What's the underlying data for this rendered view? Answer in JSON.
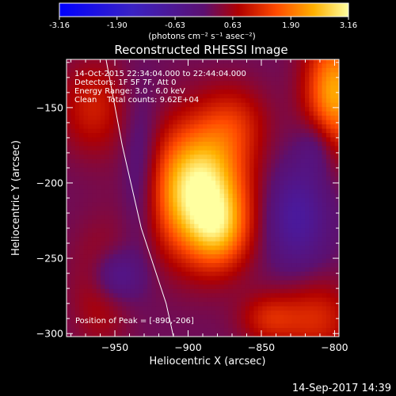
{
  "colorbar": {
    "tick_labels": [
      "-3.16",
      "-1.90",
      "-0.63",
      "0.63",
      "1.90",
      "3.16"
    ],
    "tick_values": [
      -3.16,
      -1.9,
      -0.63,
      0.63,
      1.9,
      3.16
    ],
    "range": [
      -3.16,
      3.16
    ],
    "unit_label": "(photons cm⁻² s⁻¹ asec⁻²)"
  },
  "chart_data": {
    "type": "heatmap",
    "title": "Reconstructed RHESSI Image",
    "xlabel": "Heliocentric X (arcsec)",
    "ylabel": "Heliocentric Y (arcsec)",
    "xlim": [
      -983,
      -797
    ],
    "ylim": [
      -302,
      -118
    ],
    "x_ticks": [
      -950,
      -900,
      -850,
      -800
    ],
    "x_tick_labels": [
      "−950",
      "−900",
      "−850",
      "−800"
    ],
    "y_ticks": [
      -150,
      -200,
      -250,
      -300
    ],
    "y_tick_labels": [
      "−150",
      "−200",
      "−250",
      "−300"
    ],
    "colormap": "rhessi-heat",
    "peak": [
      -890,
      -206
    ],
    "annotations": [
      "14-Oct-2015 22:34:04.000 to 22:44:04.000",
      "Detectors: 1F 5F 7F, Att 0",
      "Energy Range: 3.0 - 6.0 keV",
      "Clean    Total counts: 9.62E+04"
    ],
    "peak_label": "Position of Peak = [-890,-206]",
    "sources": [
      {
        "x": -893,
        "y": -205,
        "sx": 22,
        "sy": 30,
        "amp": 3.1
      },
      {
        "x": -878,
        "y": -232,
        "sx": 14,
        "sy": 18,
        "amp": 1.2
      },
      {
        "x": -868,
        "y": -160,
        "sx": 16,
        "sy": 18,
        "amp": 0.8
      },
      {
        "x": -965,
        "y": -150,
        "sx": 16,
        "sy": 22,
        "amp": 0.9
      },
      {
        "x": -960,
        "y": -270,
        "sx": 14,
        "sy": 28,
        "amp": 0.7
      },
      {
        "x": -800,
        "y": -140,
        "sx": 14,
        "sy": 28,
        "amp": 2.2
      },
      {
        "x": -812,
        "y": -290,
        "sx": 18,
        "sy": 18,
        "amp": 1.0
      },
      {
        "x": -845,
        "y": -290,
        "sx": 14,
        "sy": 12,
        "amp": 0.9
      },
      {
        "x": -950,
        "y": -262,
        "sx": 12,
        "sy": 12,
        "amp": -1.0
      },
      {
        "x": -932,
        "y": -195,
        "sx": 9,
        "sy": 35,
        "amp": -0.7
      },
      {
        "x": -826,
        "y": -222,
        "sx": 15,
        "sy": 24,
        "amp": -1.0
      },
      {
        "x": -812,
        "y": -175,
        "sx": 9,
        "sy": 14,
        "amp": -0.7
      }
    ],
    "limb_curve": [
      [
        -956,
        -118
      ],
      [
        -945,
        -175
      ],
      [
        -932,
        -230
      ],
      [
        -915,
        -280
      ],
      [
        -910,
        -302
      ]
    ]
  },
  "footer": {
    "timestamp": "14-Sep-2017 14:39"
  }
}
